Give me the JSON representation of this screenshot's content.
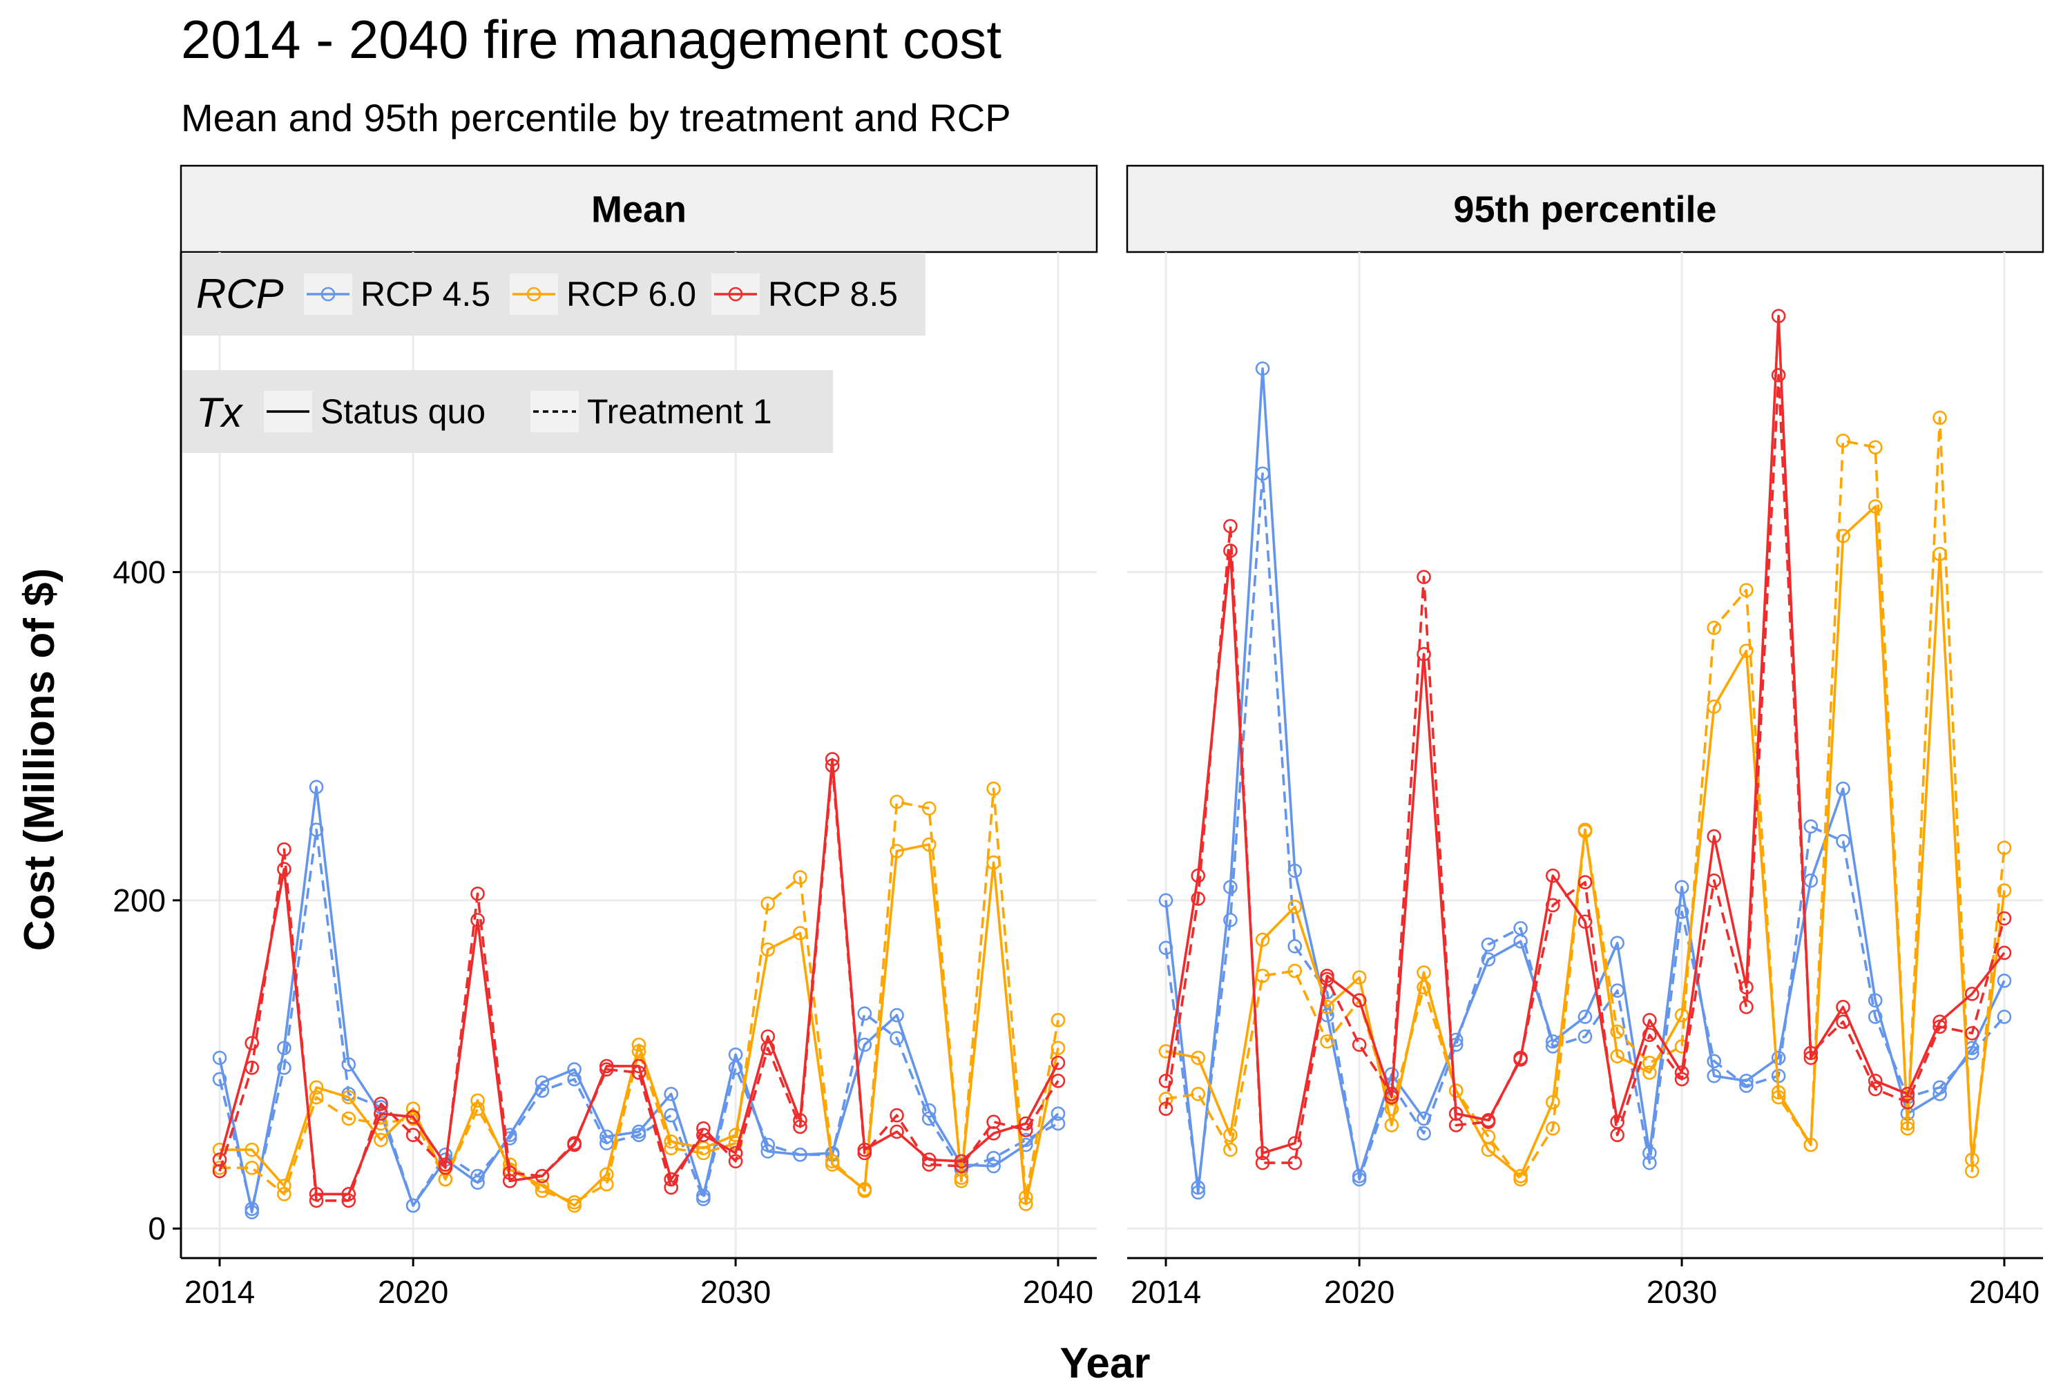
{
  "chart_data": {
    "type": "line",
    "title": "2014 - 2040 fire management cost",
    "subtitle": "Mean and 95th percentile by treatment and RCP",
    "xlabel": "Year",
    "ylabel": "Cost (Millions of $)",
    "x_ticks": [
      2014,
      2020,
      2030,
      2040
    ],
    "y_ticks": [
      0,
      200,
      400
    ],
    "xlim": [
      2012.8,
      2041.2
    ],
    "ylim": [
      -18,
      595
    ],
    "grid": true,
    "legend": {
      "placement": "top-left",
      "rcp_title": "RCP",
      "rcp_items": [
        {
          "label": "RCP 4.5",
          "color": "#6495ED"
        },
        {
          "label": "RCP 6.0",
          "color": "#FFA500"
        },
        {
          "label": "RCP 8.5",
          "color": "#EE2C2C"
        }
      ],
      "tx_title": "Tx",
      "tx_items": [
        {
          "label": "Status quo",
          "dash": "solid"
        },
        {
          "label": "Treatment 1",
          "dash": "dashed"
        }
      ]
    },
    "x": [
      2014,
      2015,
      2016,
      2017,
      2018,
      2019,
      2020,
      2021,
      2022,
      2023,
      2024,
      2025,
      2026,
      2027,
      2028,
      2029,
      2030,
      2031,
      2032,
      2033,
      2034,
      2035,
      2036,
      2037,
      2038,
      2039,
      2040
    ],
    "panels": [
      {
        "name": "Mean",
        "series": [
          {
            "name": "RCP 4.5",
            "tx": "Status quo",
            "color": "#6495ED",
            "dash": "solid",
            "values": [
              104,
              10,
              110,
              269,
              100,
              70,
              14,
              42,
              28,
              57,
              89,
              97,
              56,
              59,
              82,
              20,
              106,
              47,
              45,
              46,
              112,
              130,
              72,
              39,
              38,
              51,
              70
            ]
          },
          {
            "name": "RCP 4.5",
            "tx": "Treatment 1",
            "color": "#6495ED",
            "dash": "dashed",
            "values": [
              91,
              12,
              98,
              243,
              82,
              74,
              14,
              45,
              32,
              55,
              84,
              91,
              52,
              57,
              69,
              18,
              98,
              51,
              45,
              45,
              131,
              116,
              67,
              36,
              43,
              54,
              64
            ]
          },
          {
            "name": "RCP 6.0",
            "tx": "Status quo",
            "color": "#FFA500",
            "dash": "solid",
            "values": [
              48,
              48,
              26,
              86,
              80,
              54,
              73,
              30,
              78,
              36,
              26,
              14,
              33,
              112,
              53,
              49,
              57,
              170,
              180,
              39,
              24,
              230,
              234,
              31,
              223,
              15,
              110
            ]
          },
          {
            "name": "RCP 6.0",
            "tx": "Treatment 1",
            "color": "#FFA500",
            "dash": "dashed",
            "values": [
              37,
              37,
              21,
              80,
              67,
              64,
              67,
              30,
              73,
              39,
              23,
              16,
              27,
              108,
              49,
              46,
              52,
              198,
              214,
              41,
              23,
              260,
              256,
              29,
              268,
              19,
              127
            ]
          },
          {
            "name": "RCP 8.5",
            "tx": "Status quo",
            "color": "#EE2C2C",
            "dash": "solid",
            "values": [
              42,
              113,
              219,
              21,
              21,
              70,
              68,
              39,
              188,
              29,
              32,
              51,
              99,
              99,
              30,
              57,
              46,
              117,
              66,
              286,
              48,
              59,
              42,
              41,
              58,
              64,
              101
            ]
          },
          {
            "name": "RCP 8.5",
            "tx": "Treatment 1",
            "color": "#EE2C2C",
            "dash": "dashed",
            "values": [
              35,
              98,
              231,
              17,
              17,
              76,
              57,
              37,
              204,
              34,
              32,
              52,
              97,
              95,
              25,
              61,
              41,
              110,
              62,
              282,
              46,
              69,
              39,
              38,
              65,
              60,
              90
            ]
          }
        ]
      },
      {
        "name": "95th percentile",
        "series": [
          {
            "name": "RCP 4.5",
            "tx": "Status quo",
            "color": "#6495ED",
            "dash": "solid",
            "values": [
              200,
              22,
              208,
              524,
              218,
              130,
              32,
              94,
              67,
              115,
              164,
              175,
              114,
              129,
              174,
              46,
              208,
              93,
              90,
              104,
              212,
              268,
              139,
              70,
              82,
              110,
              151
            ]
          },
          {
            "name": "RCP 4.5",
            "tx": "Treatment 1",
            "color": "#6495ED",
            "dash": "dashed",
            "values": [
              171,
              25,
              188,
              460,
              172,
              144,
              30,
              88,
              58,
              112,
              173,
              183,
              111,
              117,
              145,
              40,
              193,
              102,
              87,
              93,
              245,
              236,
              129,
              80,
              86,
              107,
              129
            ]
          },
          {
            "name": "RCP 6.0",
            "tx": "Status quo",
            "color": "#FFA500",
            "dash": "solid",
            "values": [
              108,
              104,
              57,
              176,
              196,
              135,
              153,
              63,
              156,
              84,
              48,
              32,
              77,
              243,
              105,
              95,
              130,
              318,
              352,
              83,
              51,
              422,
              440,
              64,
              411,
              42,
              206
            ]
          },
          {
            "name": "RCP 6.0",
            "tx": "Treatment 1",
            "color": "#FFA500",
            "dash": "dashed",
            "values": [
              79,
              82,
              48,
              154,
              157,
              114,
              139,
              73,
              147,
              84,
              56,
              30,
              61,
              242,
              120,
              101,
              111,
              366,
              389,
              80,
              51,
              480,
              476,
              61,
              494,
              35,
              232
            ]
          },
          {
            "name": "RCP 8.5",
            "tx": "Status quo",
            "color": "#EE2C2C",
            "dash": "solid",
            "values": [
              90,
              215,
              413,
              46,
              52,
              154,
              139,
              80,
              350,
              70,
              66,
              103,
              215,
              187,
              65,
              127,
              95,
              239,
              147,
              556,
              104,
              135,
              90,
              82,
              126,
              143,
              168
            ]
          },
          {
            "name": "RCP 8.5",
            "tx": "Treatment 1",
            "color": "#EE2C2C",
            "dash": "dashed",
            "values": [
              73,
              201,
              428,
              40,
              40,
              152,
              112,
              82,
              397,
              63,
              65,
              104,
              197,
              211,
              57,
              118,
              91,
              212,
              135,
              520,
              107,
              126,
              85,
              77,
              123,
              119,
              189
            ]
          }
        ]
      }
    ]
  }
}
